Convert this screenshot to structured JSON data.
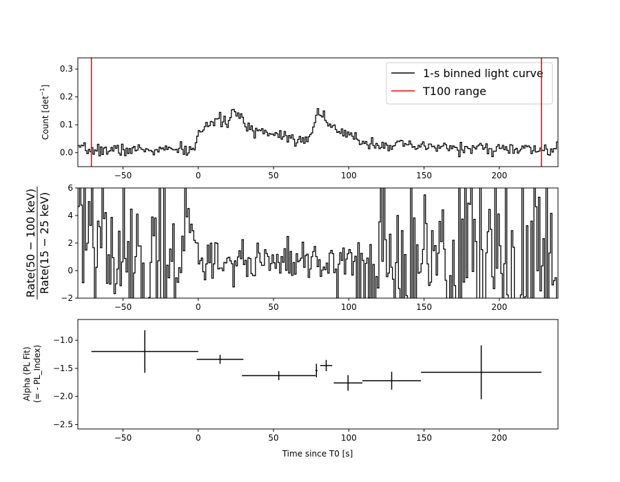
{
  "chart_data": [
    {
      "type": "line",
      "ylabel_parts": [
        "Count [det",
        "−1",
        "]"
      ],
      "xlim": [
        -80,
        239
      ],
      "ylim": [
        -0.05,
        0.34
      ],
      "xticks": [
        -50,
        0,
        50,
        100,
        150,
        200
      ],
      "yticks": [
        0.0,
        0.1,
        0.2,
        0.3
      ],
      "xtick_labels": [
        "−50",
        "0",
        "50",
        "100",
        "150",
        "200"
      ],
      "ytick_labels": [
        "0.0",
        "0.1",
        "0.2",
        "0.3"
      ],
      "legend_position": "upper-right",
      "series": [
        {
          "name": "1-s binned light curve",
          "color": "#000000",
          "x_range": [
            -80,
            239
          ],
          "step": 1,
          "envelope": {
            "x": [
              -80,
              -2,
              0,
              5,
              10,
              18,
              25,
              28,
              32,
              40,
              50,
              60,
              65,
              70,
              75,
              78,
              80,
              85,
              90,
              100,
              110,
              120,
              130,
              140,
              160,
              180,
              200,
              220,
              239
            ],
            "y": [
              0.01,
              0.01,
              0.07,
              0.1,
              0.11,
              0.11,
              0.15,
              0.12,
              0.09,
              0.08,
              0.07,
              0.06,
              0.05,
              0.05,
              0.06,
              0.12,
              0.16,
              0.12,
              0.08,
              0.06,
              0.04,
              0.03,
              0.03,
              0.02,
              0.02,
              0.015,
              0.015,
              0.01,
              0.01
            ]
          },
          "noise_sigma": 0.011
        },
        {
          "name": "T100 range",
          "color": "#ff0000",
          "x": [
            -71.0,
            228.0
          ]
        }
      ]
    },
    {
      "type": "line",
      "ylabel_num": "Rate(50 − 100 keV)",
      "ylabel_den": "Rate(15 − 25 keV)",
      "xlim": [
        -80,
        239
      ],
      "ylim": [
        -2,
        6
      ],
      "xticks": [
        -50,
        0,
        50,
        100,
        150,
        200
      ],
      "yticks": [
        -2,
        0,
        2,
        4,
        6
      ],
      "xtick_labels": [
        "−50",
        "0",
        "50",
        "100",
        "150",
        "200"
      ],
      "ytick_labels": [
        "−2",
        "0",
        "2",
        "4",
        "6"
      ],
      "series": [
        {
          "name": "",
          "color": "#000000",
          "x_range": [
            -80,
            239
          ],
          "step": 1,
          "center": 0.7,
          "quiet_spread": 0.8,
          "noisy_spread": 2.8,
          "quiet_window": [
            0,
            105
          ]
        }
      ]
    },
    {
      "type": "scatter",
      "ylabel": "Alpha (PL Fit)",
      "ylabel2": "(= - PL_Index)",
      "xlabel": "Time since T0 [s]",
      "xlim": [
        -80,
        239
      ],
      "ylim": [
        -2.58,
        -0.63
      ],
      "xticks": [
        -50,
        0,
        50,
        100,
        150,
        200
      ],
      "yticks": [
        -1.0,
        -1.5,
        -2.0,
        -2.5
      ],
      "xtick_labels": [
        "−50",
        "0",
        "50",
        "100",
        "150",
        "200"
      ],
      "ytick_labels": [
        "−1.0",
        "−1.5",
        "−2.0",
        "−2.5"
      ],
      "points": [
        {
          "x": -35.5,
          "xerr": 35.5,
          "y": -1.2,
          "yerr": 0.38
        },
        {
          "x": 14.5,
          "xerr": 15.5,
          "y": -1.34,
          "yerr": 0.08
        },
        {
          "x": 53.5,
          "xerr": 24.5,
          "y": -1.63,
          "yerr": 0.08
        },
        {
          "x": 78.5,
          "xerr": 0.7,
          "y": -1.54,
          "yerr": 0.12
        },
        {
          "x": 85.0,
          "xerr": 4.0,
          "y": -1.45,
          "yerr": 0.1
        },
        {
          "x": 99.5,
          "xerr": 9.5,
          "y": -1.76,
          "yerr": 0.14
        },
        {
          "x": 128.5,
          "xerr": 19.5,
          "y": -1.72,
          "yerr": 0.16
        },
        {
          "x": 188.0,
          "xerr": 40.0,
          "y": -1.57,
          "yerr": 0.48
        }
      ]
    }
  ]
}
